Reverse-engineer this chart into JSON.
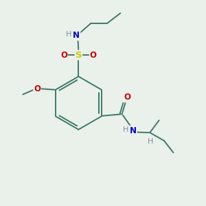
{
  "bg_color": "#eaf0ea",
  "bond_color": "#3d7a6a",
  "atom_colors": {
    "N": "#0000cc",
    "O": "#cc0000",
    "S": "#cccc00",
    "H": "#8090a0",
    "C": "#3d7a6a"
  },
  "figsize": [
    3.0,
    3.0
  ],
  "dpi": 100,
  "lw": 1.4,
  "fs": 8.5
}
